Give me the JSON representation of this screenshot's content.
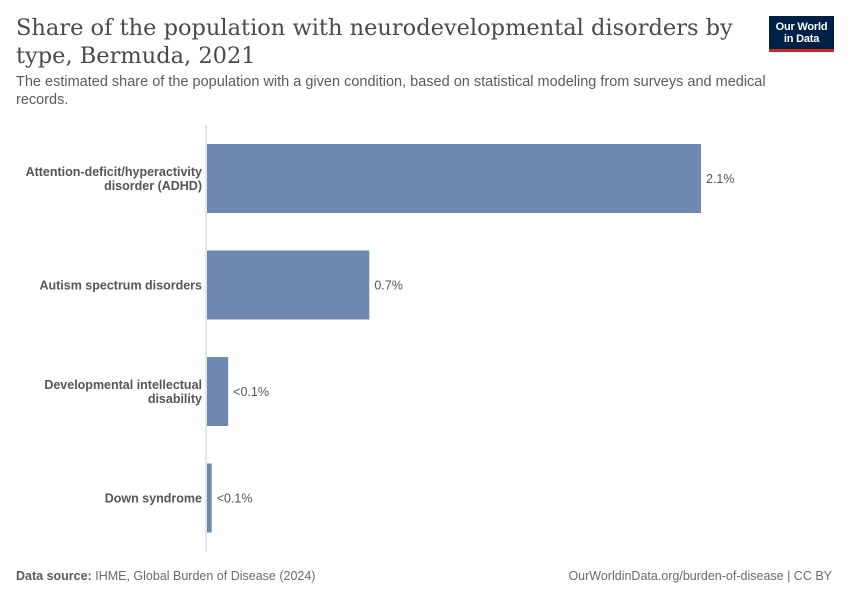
{
  "header": {
    "title": "Share of the population with neurodevelopmental disorders by type, Bermuda, 2021",
    "subtitle": "The estimated share of the population with a given condition, based on statistical modeling from surveys and medical records.",
    "logo_line1": "Our World",
    "logo_line2": "in Data"
  },
  "footer": {
    "source_label": "Data source:",
    "source_text": "IHME, Global Burden of Disease (2024)",
    "link_text": "OurWorldinData.org/burden-of-disease | CC BY"
  },
  "colors": {
    "bar": "#6f88b2",
    "axis": "#cccccc",
    "logo_bg": "#002147",
    "logo_accent": "#ce261e"
  },
  "chart_data": {
    "type": "bar",
    "orientation": "horizontal",
    "categories": [
      [
        "Attention-deficit/hyperactivity",
        "disorder (ADHD)"
      ],
      [
        "Autism spectrum disorders"
      ],
      [
        "Developmental intellectual",
        "disability"
      ],
      [
        "Down syndrome"
      ]
    ],
    "values": [
      2.1,
      0.69,
      0.09,
      0.02
    ],
    "value_labels": [
      "2.1%",
      "0.7%",
      "<0.1%",
      "<0.1%"
    ],
    "unit": "%",
    "xlim": [
      0,
      2.1
    ],
    "grid": false
  }
}
